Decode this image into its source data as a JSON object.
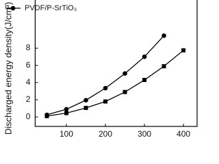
{
  "chart_data": {
    "type": "line",
    "y_label": "Discharged energy density(J/cm³)",
    "x": [
      50,
      100,
      150,
      200,
      250,
      300,
      350,
      400
    ],
    "series": [
      {
        "name": "PVDF/P-SrTiO₃",
        "color": "#000000",
        "marker": "circle",
        "values": [
          0.25,
          0.9,
          1.95,
          3.35,
          5.05,
          7.0,
          9.45,
          null
        ]
      },
      {
        "color": "#000000",
        "marker": "square",
        "values": [
          0.1,
          0.45,
          1.05,
          1.8,
          2.9,
          4.3,
          5.9,
          7.75
        ]
      }
    ],
    "xlim": [
      20,
      435
    ],
    "ylim": [
      -1.1,
      13.6
    ],
    "xticks": [
      100,
      200,
      300,
      400
    ],
    "yticks": [
      0,
      2,
      4,
      6,
      8
    ],
    "legend": "top-left"
  }
}
